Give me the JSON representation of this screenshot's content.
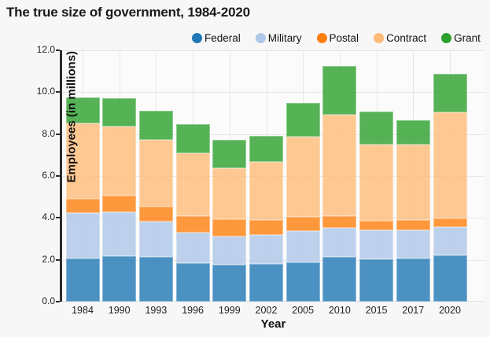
{
  "title": "The true size of government, 1984-2020",
  "y_axis": {
    "label": "Employees (in millions)",
    "tick_labels": [
      "0.0",
      "2.0",
      "4.0",
      "6.0",
      "8.0",
      "10.0",
      "12.0"
    ],
    "tick_values": [
      0,
      2,
      4,
      6,
      8,
      10,
      12
    ],
    "max": 12
  },
  "x_axis": {
    "label": "Year"
  },
  "chart_data": {
    "type": "bar",
    "stacked": true,
    "title": "The true size of government, 1984-2020",
    "xlabel": "Year",
    "ylabel": "Employees (in millions)",
    "ylim": [
      0,
      12
    ],
    "grid": true,
    "legend_position": "top",
    "categories": [
      "1984",
      "1990",
      "1993",
      "1996",
      "1999",
      "2002",
      "2005",
      "2010",
      "2015",
      "2017",
      "2020"
    ],
    "series": [
      {
        "name": "Federal",
        "color": "#1f77b4",
        "fill": "rgba(31,119,180,0.8)",
        "values": [
          2.08,
          2.17,
          2.12,
          1.84,
          1.77,
          1.8,
          1.86,
          2.12,
          2.03,
          2.07,
          2.22
        ]
      },
      {
        "name": "Military",
        "color": "#aec7e8",
        "fill": "rgba(174,199,232,0.8)",
        "values": [
          2.16,
          2.09,
          1.7,
          1.47,
          1.36,
          1.37,
          1.5,
          1.4,
          1.4,
          1.36,
          1.34
        ]
      },
      {
        "name": "Postal",
        "color": "#ff7f0e",
        "fill": "rgba(255,127,14,0.8)",
        "values": [
          0.66,
          0.79,
          0.71,
          0.76,
          0.82,
          0.73,
          0.68,
          0.58,
          0.42,
          0.47,
          0.43
        ]
      },
      {
        "name": "Contract",
        "color": "#ffbb78",
        "fill": "rgba(255,187,120,0.8)",
        "values": [
          3.61,
          3.3,
          3.19,
          3.03,
          2.44,
          2.77,
          3.83,
          4.81,
          3.66,
          3.6,
          5.04
        ]
      },
      {
        "name": "Grant",
        "color": "#2ca02c",
        "fill": "rgba(44,160,44,0.8)",
        "values": [
          1.24,
          1.36,
          1.38,
          1.37,
          1.33,
          1.24,
          1.6,
          2.34,
          1.57,
          1.18,
          1.86
        ]
      }
    ],
    "totals": [
      9.75,
      9.71,
      9.1,
      8.47,
      7.72,
      7.91,
      9.47,
      11.25,
      9.08,
      8.68,
      10.89
    ]
  }
}
